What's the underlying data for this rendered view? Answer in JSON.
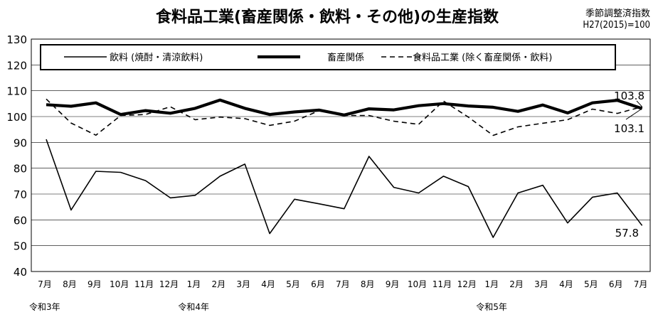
{
  "chart_data": {
    "type": "line",
    "title": "食料品工業(畜産関係・飲料・その他)の生産指数",
    "note_lines": [
      "季節調整済指数",
      "H27(2015)=100"
    ],
    "categories": [
      "7月",
      "8月",
      "9月",
      "10月",
      "11月",
      "12月",
      "1月",
      "2月",
      "3月",
      "4月",
      "5月",
      "6月",
      "7月",
      "8月",
      "9月",
      "10月",
      "11月",
      "12月",
      "1月",
      "2月",
      "3月",
      "4月",
      "5月",
      "6月",
      "7月"
    ],
    "era_labels": [
      {
        "index": 0,
        "text": "令和3年"
      },
      {
        "index": 6,
        "text": "令和4年"
      },
      {
        "index": 18,
        "text": "令和5年"
      }
    ],
    "ylim": [
      40,
      130
    ],
    "yticks": [
      40,
      50,
      60,
      70,
      80,
      90,
      100,
      110,
      120,
      130
    ],
    "grid": true,
    "legend_position": "top",
    "series": [
      {
        "name": "飲料 (焼酎・清涼飲料)",
        "style": "thin",
        "values": [
          91.2,
          63.8,
          78.8,
          78.4,
          75.2,
          68.5,
          69.5,
          76.9,
          81.6,
          54.7,
          68.0,
          66.2,
          64.3,
          84.6,
          72.6,
          70.4,
          76.9,
          72.9,
          53.2,
          70.4,
          73.4,
          58.8,
          68.8,
          70.4,
          57.8
        ]
      },
      {
        "name": "畜産関係",
        "style": "thick",
        "values": [
          104.6,
          104.0,
          105.3,
          100.8,
          102.3,
          101.3,
          103.2,
          106.4,
          103.2,
          100.8,
          101.8,
          102.5,
          100.6,
          103.0,
          102.6,
          104.2,
          105.0,
          104.1,
          103.6,
          102.0,
          104.5,
          101.4,
          105.3,
          106.3,
          103.1
        ]
      },
      {
        "name": "食料品工業 (除く畜産関係・飲料)",
        "style": "dashed",
        "values": [
          106.8,
          97.5,
          92.8,
          100.4,
          100.8,
          103.8,
          98.8,
          99.8,
          99.2,
          96.6,
          98.2,
          102.3,
          100.4,
          100.4,
          98.2,
          97.0,
          106.0,
          99.8,
          92.7,
          96.0,
          97.4,
          98.8,
          102.9,
          101.2,
          103.8
        ]
      }
    ],
    "annotations": [
      {
        "text": "103.8",
        "series": 2,
        "index": 24
      },
      {
        "text": "103.1",
        "series": 1,
        "index": 24
      },
      {
        "text": "57.8",
        "series": 0,
        "index": 24
      }
    ],
    "colors": {
      "line": "#000000",
      "grid": "#000000",
      "background": "#ffffff"
    }
  }
}
